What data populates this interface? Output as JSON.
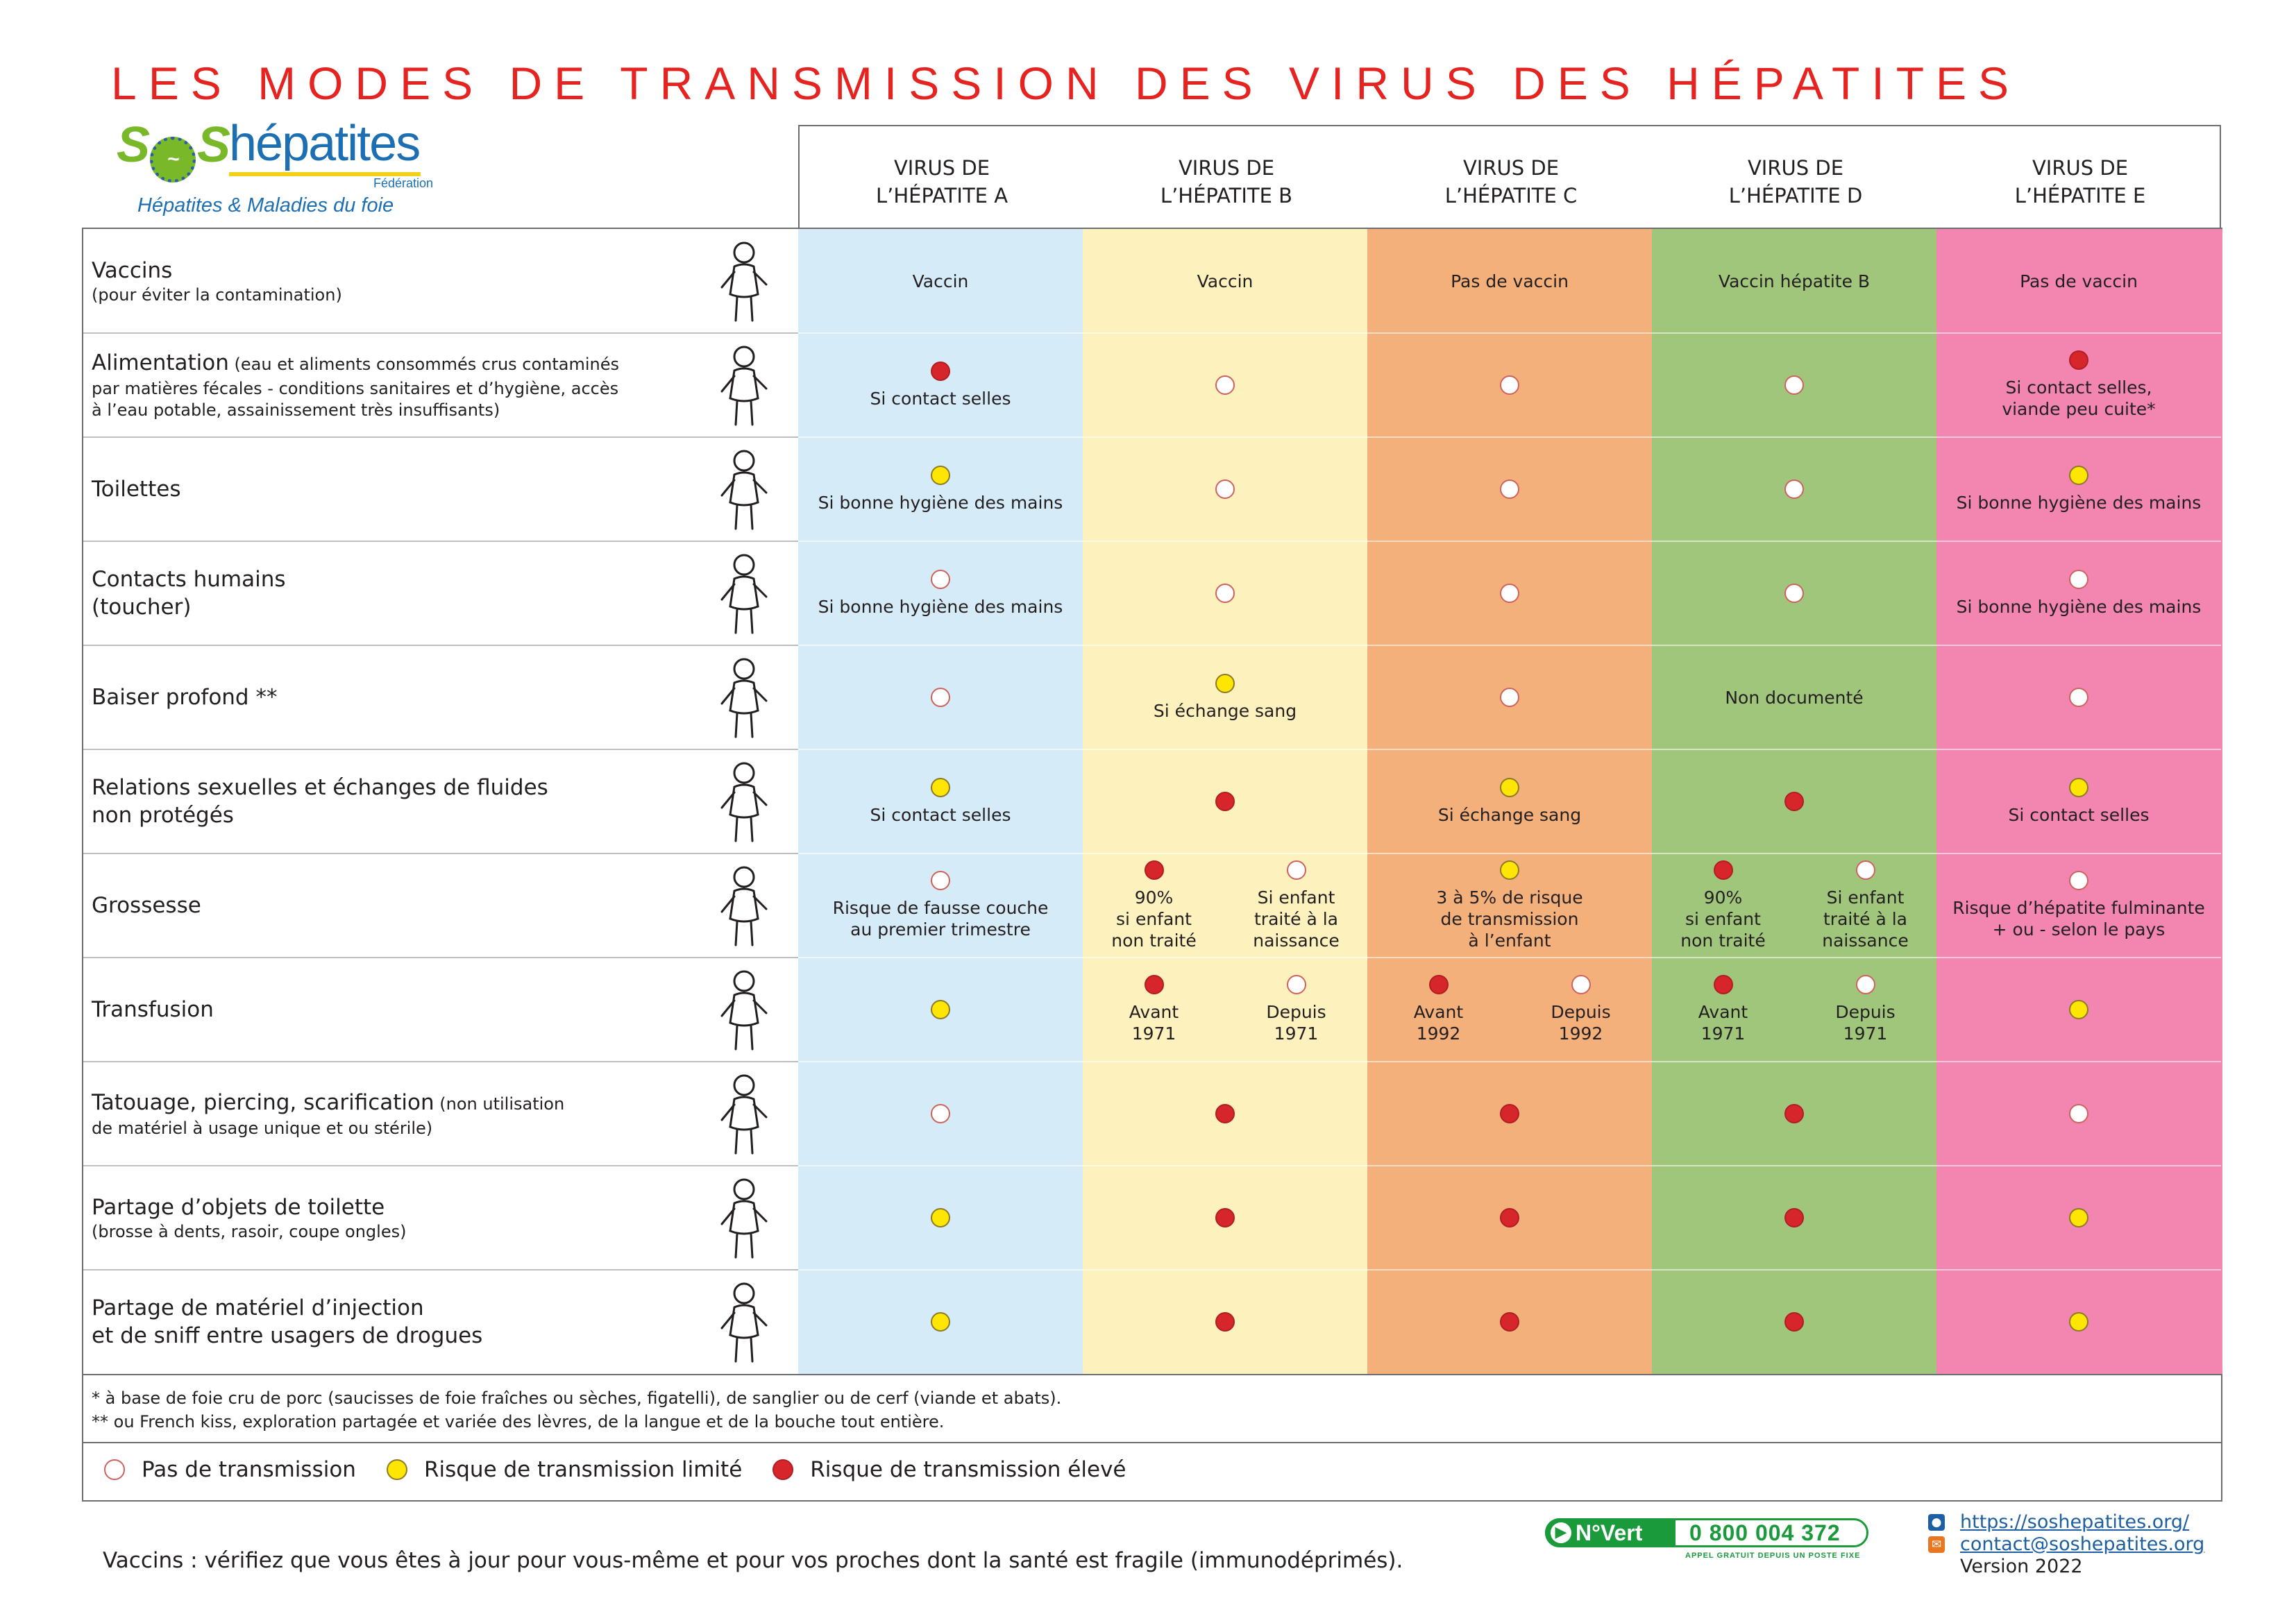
{
  "title": "LES MODES DE TRANSMISSION DES VIRUS DES HÉPATITES",
  "logo": {
    "mark": "S",
    "mark_end": "S",
    "name": "hépatites",
    "federation": "Fédération",
    "tagline": "Hépatites & Maladies du foie"
  },
  "headers": [
    [
      "VIRUS DE",
      "L’HÉPATITE A"
    ],
    [
      "VIRUS DE",
      "L’HÉPATITE B"
    ],
    [
      "VIRUS DE",
      "L’HÉPATITE C"
    ],
    [
      "VIRUS DE",
      "L’HÉPATITE D"
    ],
    [
      "VIRUS DE",
      "L’HÉPATITE E"
    ]
  ],
  "colors": {
    "hepA": "#d6ebf8",
    "hepB": "#fdf1bd",
    "hepC": "#f4b07b",
    "hepD": "#a0c67c",
    "hepE": "#f286b0",
    "title": "#e52421",
    "no_risk": "#ffffff",
    "limited_risk": "#ffe600",
    "high_risk": "#d7262b"
  },
  "rows": [
    {
      "label": "Vaccins",
      "label_inline": "",
      "sub": "(pour éviter la contamination)",
      "icon": "nurse-syringe-icon",
      "cells": [
        {
          "dot": "",
          "text": "Vaccin"
        },
        {
          "dot": "",
          "text": "Vaccin"
        },
        {
          "dot": "",
          "text": "Pas de vaccin"
        },
        {
          "dot": "",
          "text": "Vaccin hépatite B"
        },
        {
          "dot": "",
          "text": "Pas de vaccin"
        }
      ]
    },
    {
      "label": "Alimentation",
      "label_inline": " (eau et aliments consommés crus contaminés",
      "sub": "par matières fécales - conditions sanitaires et d’hygiène, accès\nà l’eau potable, assainissement très insuffisants)",
      "icon": "child-eating-icon",
      "cells": [
        {
          "dot": "high",
          "text": "Si contact selles"
        },
        {
          "dot": "none",
          "text": ""
        },
        {
          "dot": "none",
          "text": ""
        },
        {
          "dot": "none",
          "text": ""
        },
        {
          "dot": "high",
          "text": "Si contact selles,\nviande peu cuite*"
        }
      ]
    },
    {
      "label": "Toilettes",
      "label_inline": "",
      "sub": "",
      "icon": "child-toilet-icon",
      "cells": [
        {
          "dot": "limited",
          "text": "Si bonne hygiène des mains"
        },
        {
          "dot": "none",
          "text": ""
        },
        {
          "dot": "none",
          "text": ""
        },
        {
          "dot": "none",
          "text": ""
        },
        {
          "dot": "limited",
          "text": "Si bonne hygiène des mains"
        }
      ]
    },
    {
      "label": "Contacts humains\n(toucher)",
      "label_inline": "",
      "sub": "",
      "icon": "hug-icon",
      "cells": [
        {
          "dot": "none",
          "text": "Si bonne hygiène des mains"
        },
        {
          "dot": "none",
          "text": ""
        },
        {
          "dot": "none",
          "text": ""
        },
        {
          "dot": "none",
          "text": ""
        },
        {
          "dot": "none",
          "text": "Si bonne hygiène des mains"
        }
      ]
    },
    {
      "label": "Baiser profond **",
      "label_inline": "",
      "sub": "",
      "icon": "kiss-icon",
      "cells": [
        {
          "dot": "none",
          "text": ""
        },
        {
          "dot": "limited",
          "text": "Si échange sang"
        },
        {
          "dot": "none",
          "text": ""
        },
        {
          "dot": "",
          "text": "Non documenté"
        },
        {
          "dot": "none",
          "text": ""
        }
      ]
    },
    {
      "label": "Relations sexuelles et échanges de fluides\nnon protégés",
      "label_inline": "",
      "sub": "",
      "icon": "couple-icon",
      "cells": [
        {
          "dot": "limited",
          "text": "Si contact selles"
        },
        {
          "dot": "high",
          "text": ""
        },
        {
          "dot": "limited",
          "text": "Si échange sang"
        },
        {
          "dot": "high",
          "text": ""
        },
        {
          "dot": "limited",
          "text": "Si contact selles"
        }
      ]
    },
    {
      "label": "Grossesse",
      "label_inline": "",
      "sub": "",
      "icon": "pregnant-woman-icon",
      "cells": [
        {
          "dot": "none",
          "text": "Risque de fausse couche\nau premier trimestre"
        },
        {
          "split": [
            {
              "dot": "high",
              "text": "90%\nsi enfant\nnon traité"
            },
            {
              "dot": "none",
              "text": "Si enfant\ntraité à la\nnaissance"
            }
          ]
        },
        {
          "dot": "limited",
          "text": "3 à 5% de risque\nde transmission\nà l’enfant"
        },
        {
          "split": [
            {
              "dot": "high",
              "text": "90%\nsi enfant\nnon traité"
            },
            {
              "dot": "none",
              "text": "Si enfant\ntraité à la\nnaissance"
            }
          ]
        },
        {
          "dot": "none",
          "text": "Risque d’hépatite fulminante\n+ ou - selon le pays"
        }
      ]
    },
    {
      "label": "Transfusion",
      "label_inline": "",
      "sub": "",
      "icon": "transfusion-icon",
      "cells": [
        {
          "dot": "limited",
          "text": ""
        },
        {
          "split": [
            {
              "dot": "high",
              "text": "Avant\n1971"
            },
            {
              "dot": "none",
              "text": "Depuis\n1971"
            }
          ]
        },
        {
          "split": [
            {
              "dot": "high",
              "text": "Avant\n1992"
            },
            {
              "dot": "none",
              "text": "Depuis\n1992"
            }
          ]
        },
        {
          "split": [
            {
              "dot": "high",
              "text": "Avant\n1971"
            },
            {
              "dot": "none",
              "text": "Depuis\n1971"
            }
          ]
        },
        {
          "dot": "limited",
          "text": ""
        }
      ]
    },
    {
      "label": "Tatouage, piercing, scarification",
      "label_inline": " (non utilisation",
      "sub": "de matériel à usage unique et ou stérile)",
      "icon": "ear-piercing-icon",
      "cells": [
        {
          "dot": "none",
          "text": ""
        },
        {
          "dot": "high",
          "text": ""
        },
        {
          "dot": "high",
          "text": ""
        },
        {
          "dot": "high",
          "text": ""
        },
        {
          "dot": "none",
          "text": ""
        }
      ]
    },
    {
      "label": "Partage d’objets de toilette",
      "label_inline": "",
      "sub": "(brosse à dents, rasoir, coupe ongles)",
      "icon": "toothbrush-icon",
      "cells": [
        {
          "dot": "limited",
          "text": ""
        },
        {
          "dot": "high",
          "text": ""
        },
        {
          "dot": "high",
          "text": ""
        },
        {
          "dot": "high",
          "text": ""
        },
        {
          "dot": "limited",
          "text": ""
        }
      ]
    },
    {
      "label": "Partage de matériel d’injection\net de sniff entre usagers de drogues",
      "label_inline": "",
      "sub": "",
      "icon": "injection-icon",
      "cells": [
        {
          "dot": "limited",
          "text": ""
        },
        {
          "dot": "high",
          "text": ""
        },
        {
          "dot": "high",
          "text": ""
        },
        {
          "dot": "high",
          "text": ""
        },
        {
          "dot": "limited",
          "text": ""
        }
      ]
    }
  ],
  "notes": {
    "note1": "* à base de foie cru de porc (saucisses de foie fraîches ou sèches, figatelli), de sanglier ou de cerf (viande et abats).",
    "note2": "** ou French kiss, exploration partagée et variée des lèvres, de la langue et de la bouche tout entière."
  },
  "legend": {
    "none": "Pas de transmission",
    "limited": "Risque de transmission limité",
    "high": "Risque de transmission élevé"
  },
  "footer": {
    "vaccine_text": "Vaccins : vérifiez que vous êtes à jour pour vous-même et pour vos proches dont la santé est fragile (immunodéprimés).",
    "nvert_label": "N°Vert",
    "nvert_number": "0 800 004 372",
    "nvert_sub": "APPEL GRATUIT DEPUIS UN POSTE FIXE",
    "website": "https://soshepatites.org/",
    "email": "contact@soshepatites.org",
    "version": "Version 2022"
  }
}
